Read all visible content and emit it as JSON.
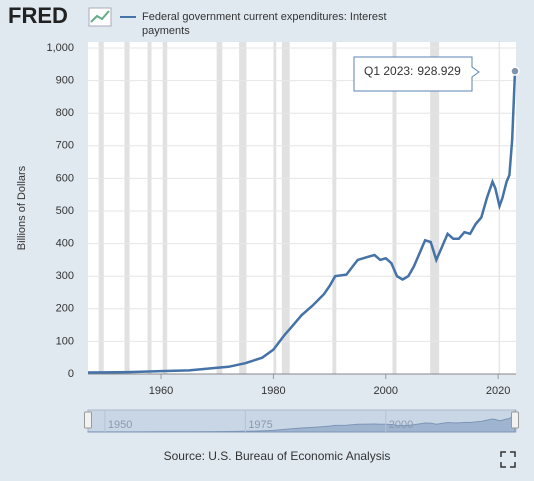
{
  "logo": "FRED",
  "chart_data": {
    "type": "line",
    "legend": "Federal government current expenditures: Interest payments",
    "y_label": "Billions of Dollars",
    "source": "Source: U.S. Bureau of Economic Analysis",
    "x": [
      1947,
      1950,
      1955,
      1960,
      1965,
      1970,
      1972,
      1975,
      1978,
      1980,
      1982,
      1983,
      1985,
      1987,
      1989,
      1990,
      1991,
      1993,
      1995,
      1997,
      1998,
      1999,
      2000,
      2001,
      2002,
      2003,
      2004,
      2005,
      2006,
      2007,
      2008,
      2009,
      2010,
      2011,
      2012,
      2013,
      2014,
      2015,
      2016,
      2017,
      2018,
      2019,
      2019.5,
      2020.25,
      2020.75,
      2021.5,
      2022,
      2022.5,
      2023
    ],
    "series": [
      {
        "name": "Federal government current expenditures: Interest payments",
        "color": "#4572a7",
        "values": [
          4.5,
          5,
          6,
          9,
          11,
          19,
          22,
          33,
          50,
          75,
          120,
          140,
          180,
          210,
          245,
          270,
          300,
          305,
          350,
          360,
          365,
          350,
          355,
          340,
          300,
          290,
          300,
          330,
          370,
          410,
          405,
          350,
          390,
          430,
          415,
          415,
          435,
          430,
          460,
          480,
          540,
          590,
          570,
          515,
          540,
          590,
          610,
          720,
          928.929
        ]
      }
    ],
    "recessions": [
      [
        1948.9,
        1949.8
      ],
      [
        1953.5,
        1954.4
      ],
      [
        1957.6,
        1958.3
      ],
      [
        1960.3,
        1961.1
      ],
      [
        1969.9,
        1970.9
      ],
      [
        1973.9,
        1975.2
      ],
      [
        1980,
        1980.5
      ],
      [
        1981.5,
        1982.9
      ],
      [
        1990.5,
        1991.2
      ],
      [
        2001.2,
        2001.9
      ],
      [
        2007.9,
        2009.5
      ],
      [
        2020.1,
        2020.3
      ]
    ],
    "xlim": [
      1947,
      2023
    ],
    "ylim": [
      0,
      1000
    ],
    "xticks": [
      1960,
      1980,
      2000,
      2020
    ],
    "yticks": [
      0,
      100,
      200,
      300,
      400,
      500,
      600,
      700,
      800,
      900,
      {
        "value": 1000,
        "label": "1,000"
      }
    ],
    "navigator_ticks": [
      1950,
      1975,
      2000
    ],
    "grid": true,
    "tooltip": {
      "label": "Q1 2023:",
      "value": 928.929
    }
  }
}
